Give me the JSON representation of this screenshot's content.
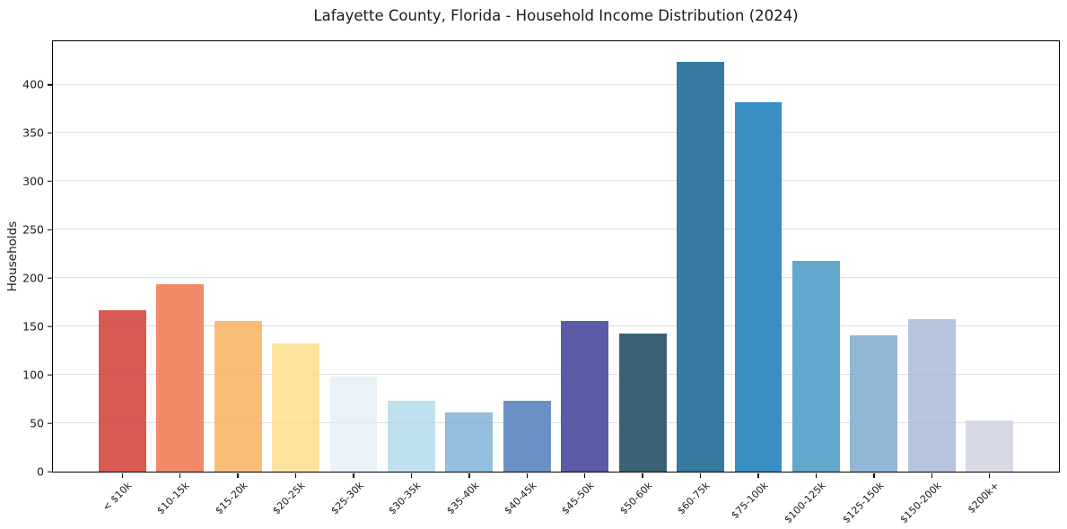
{
  "chart_data": {
    "type": "bar",
    "title": "Lafayette County, Florida - Household Income Distribution (2024)",
    "xlabel": "",
    "ylabel": "Households",
    "categories": [
      "< $10k",
      "$10-15k",
      "$15-20k",
      "$20-25k",
      "$25-30k",
      "$30-35k",
      "$35-40k",
      "$40-45k",
      "$45-50k",
      "$50-60k",
      "$60-75k",
      "$75-100k",
      "$100-125k",
      "$125-150k",
      "$150-200k",
      "$200k+"
    ],
    "values": [
      167,
      194,
      156,
      133,
      98,
      73,
      61,
      73,
      156,
      143,
      424,
      382,
      218,
      141,
      158,
      53
    ],
    "bar_colors": [
      "#d85a52",
      "#f28a68",
      "#fabd78",
      "#fde49d",
      "#e9f3f7",
      "#bfe0ed",
      "#93bedd",
      "#6b90c4",
      "#5a5ca8",
      "#3a6274",
      "#38799f",
      "#398fc4",
      "#61a7cc",
      "#93b7d7",
      "#b6c4dd",
      "#d8d9e6"
    ],
    "yticks": [
      0,
      50,
      100,
      150,
      200,
      250,
      300,
      350,
      400
    ],
    "ylim": [
      0,
      445
    ],
    "grid": "horizontal-only",
    "gridline_color": "#e9e9e9",
    "spine_color": "#000000",
    "background_color": "#ffffff",
    "legend": "none",
    "x_tick_rotation_deg": 45
  }
}
